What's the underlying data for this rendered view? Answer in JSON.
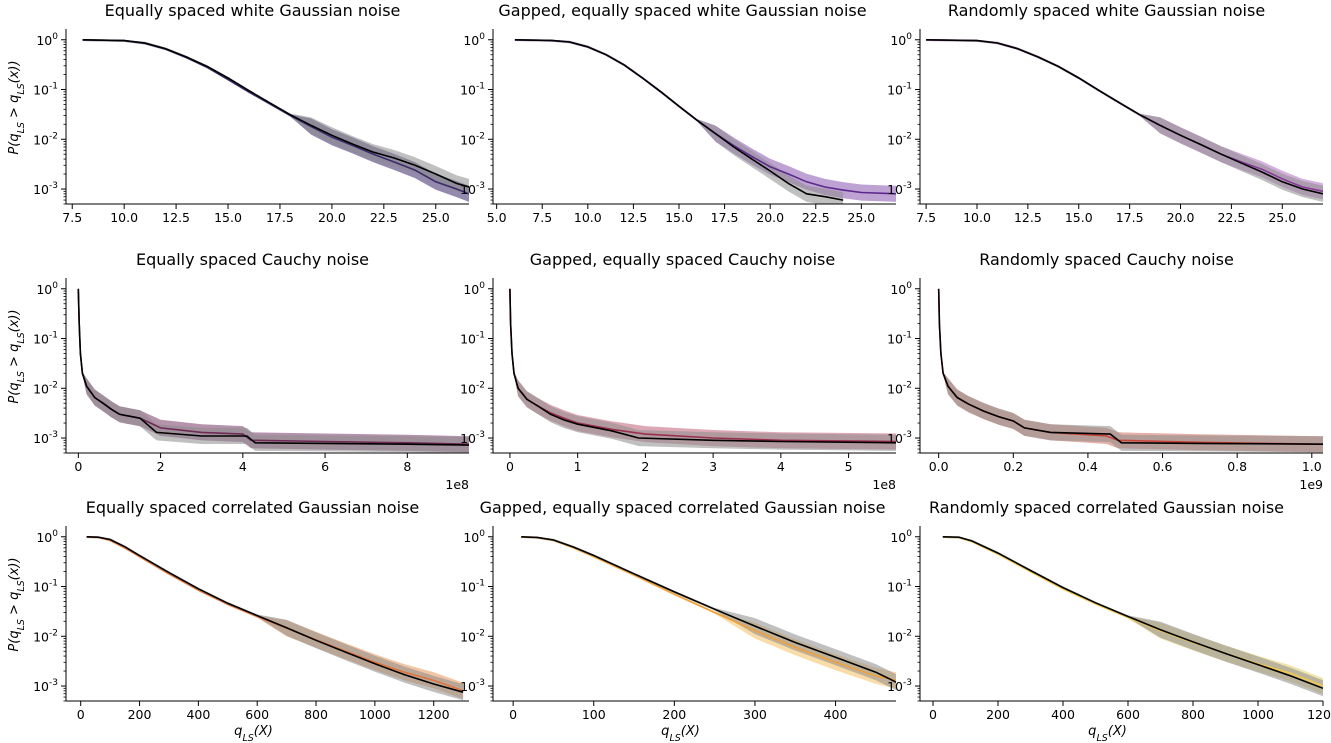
{
  "ylabel": "P(q_LS > q_LS(x))",
  "xlabel": "q_LS(X)",
  "yscale": "log",
  "ylim": [
    0.0005,
    1.5
  ],
  "colors": {
    "black": "#000000",
    "band_black": "#8c8c8c",
    "purple_dark": "#3b2a6b",
    "purple": "#5b2a8c",
    "purple_light": "#9b4fb0",
    "wine": "#6e2a55",
    "red_wine": "#9a2f4d",
    "red_orange": "#c8443a",
    "orange": "#e0743a",
    "orange_yellow": "#f0a03a",
    "yellow": "#f5c84a"
  },
  "chart_data": [
    {
      "type": "line",
      "title": "Equally spaced white Gaussian noise",
      "xlim": [
        7.2,
        26.6
      ],
      "xticks": [
        7.5,
        10,
        12.5,
        15,
        17.5,
        20,
        22.5,
        25
      ],
      "xticklabels": [
        "7.5",
        "10.0",
        "12.5",
        "15.0",
        "17.5",
        "20.0",
        "22.5",
        "25.0"
      ],
      "series": [
        {
          "color": "#3b2a6b",
          "band": "#3b2a6b",
          "x": [
            8,
            10,
            11,
            12,
            13,
            14,
            15,
            16,
            17,
            18,
            19,
            20,
            21,
            22,
            23,
            24,
            25,
            26,
            26.6
          ],
          "y": [
            1.0,
            0.96,
            0.85,
            0.65,
            0.44,
            0.28,
            0.16,
            0.09,
            0.052,
            0.03,
            0.018,
            0.011,
            0.0075,
            0.005,
            0.0035,
            0.0024,
            0.0014,
            0.001,
            0.0008
          ]
        },
        {
          "color": "#000000",
          "band": "#8c8c8c",
          "x": [
            8,
            10,
            11,
            12,
            13,
            14,
            15,
            16,
            17,
            18,
            19,
            20,
            21,
            22,
            23,
            24,
            25,
            26,
            26.6
          ],
          "y": [
            1.0,
            0.96,
            0.86,
            0.66,
            0.45,
            0.29,
            0.17,
            0.095,
            0.054,
            0.031,
            0.019,
            0.012,
            0.008,
            0.0055,
            0.0042,
            0.003,
            0.002,
            0.0013,
            0.0011
          ]
        }
      ]
    },
    {
      "type": "line",
      "title": "Gapped, equally spaced white Gaussian noise",
      "xlim": [
        4.8,
        26.9
      ],
      "xticks": [
        5,
        7.5,
        10,
        12.5,
        15,
        17.5,
        20,
        22.5,
        25
      ],
      "xticklabels": [
        "5.0",
        "7.5",
        "10.0",
        "12.5",
        "15.0",
        "17.5",
        "20.0",
        "22.5",
        "25.0"
      ],
      "series": [
        {
          "color": "#5b2a8c",
          "band": "#8a55b0",
          "x": [
            6,
            8,
            9,
            10,
            11,
            12,
            13,
            14,
            15,
            16,
            17,
            18,
            19,
            20,
            21,
            22,
            23,
            24,
            25,
            26.9
          ],
          "y": [
            1.0,
            0.97,
            0.9,
            0.72,
            0.5,
            0.31,
            0.17,
            0.09,
            0.046,
            0.024,
            0.013,
            0.0075,
            0.0045,
            0.0028,
            0.002,
            0.0014,
            0.0011,
            0.00095,
            0.00085,
            0.0008
          ]
        },
        {
          "color": "#000000",
          "band": "#8c8c8c",
          "x": [
            6,
            8,
            9,
            10,
            11,
            12,
            13,
            14,
            15,
            16,
            17,
            18,
            19,
            20,
            21,
            22,
            23,
            24
          ],
          "y": [
            1.0,
            0.97,
            0.9,
            0.72,
            0.5,
            0.31,
            0.17,
            0.09,
            0.046,
            0.024,
            0.013,
            0.007,
            0.004,
            0.0023,
            0.0013,
            0.0008,
            0.0007,
            0.0006
          ]
        }
      ]
    },
    {
      "type": "line",
      "title": "Randomly spaced white Gaussian noise",
      "xlim": [
        7.2,
        27.0
      ],
      "xticks": [
        7.5,
        10,
        12.5,
        15,
        17.5,
        20,
        22.5,
        25
      ],
      "xticklabels": [
        "7.5",
        "10.0",
        "12.5",
        "15.0",
        "17.5",
        "20.0",
        "22.5",
        "25.0"
      ],
      "series": [
        {
          "color": "#8a3a9a",
          "band": "#b070c0",
          "x": [
            7.5,
            10,
            11,
            12,
            13,
            14,
            15,
            16,
            17,
            18,
            19,
            20,
            21,
            22,
            23,
            24,
            25,
            26,
            27
          ],
          "y": [
            1.0,
            0.96,
            0.86,
            0.66,
            0.45,
            0.29,
            0.17,
            0.095,
            0.054,
            0.031,
            0.019,
            0.012,
            0.0078,
            0.005,
            0.0035,
            0.0025,
            0.0016,
            0.0011,
            0.0009
          ]
        },
        {
          "color": "#000000",
          "band": "#8c8c8c",
          "x": [
            7.5,
            10,
            11,
            12,
            13,
            14,
            15,
            16,
            17,
            18,
            19,
            20,
            21,
            22,
            23,
            24,
            25,
            26,
            27
          ],
          "y": [
            1.0,
            0.96,
            0.86,
            0.66,
            0.45,
            0.29,
            0.17,
            0.095,
            0.054,
            0.031,
            0.019,
            0.012,
            0.0078,
            0.005,
            0.0033,
            0.0022,
            0.0014,
            0.001,
            0.0008
          ]
        }
      ]
    },
    {
      "type": "line",
      "title": "Equally spaced Cauchy noise",
      "xlim": [
        -30000000,
        950000000
      ],
      "xticks": [
        0,
        200000000,
        400000000,
        600000000,
        800000000
      ],
      "xticklabels": [
        "0",
        "2",
        "4",
        "6",
        "8"
      ],
      "offset_text": "1e8",
      "series": [
        {
          "color": "#6e2a55",
          "band": "#7a3a6a",
          "x": [
            0,
            2000000,
            5000000,
            10000000,
            20000000,
            40000000,
            60000000,
            80000000,
            100000000,
            150000000,
            200000000,
            300000000,
            400000000,
            420000000,
            600000000,
            800000000,
            950000000
          ],
          "y": [
            1.0,
            0.2,
            0.05,
            0.02,
            0.011,
            0.0065,
            0.005,
            0.0038,
            0.003,
            0.0025,
            0.0016,
            0.0013,
            0.0012,
            0.0009,
            0.00085,
            0.0008,
            0.00075
          ]
        },
        {
          "color": "#000000",
          "band": "#8c8c8c",
          "x": [
            0,
            2000000,
            5000000,
            10000000,
            20000000,
            40000000,
            60000000,
            80000000,
            100000000,
            150000000,
            190000000,
            300000000,
            410000000,
            430000000,
            600000000,
            800000000,
            950000000
          ],
          "y": [
            1.0,
            0.2,
            0.05,
            0.02,
            0.011,
            0.0065,
            0.005,
            0.0038,
            0.003,
            0.0025,
            0.0013,
            0.0011,
            0.0011,
            0.0008,
            0.00078,
            0.00075,
            0.00072
          ]
        }
      ]
    },
    {
      "type": "line",
      "title": "Gapped, equally spaced Cauchy noise",
      "xlim": [
        -25000000,
        570000000
      ],
      "xticks": [
        0,
        100000000,
        200000000,
        300000000,
        400000000,
        500000000
      ],
      "xticklabels": [
        "0",
        "1",
        "2",
        "3",
        "4",
        "5"
      ],
      "offset_text": "1e8",
      "series": [
        {
          "color": "#9a2f4d",
          "band": "#c0607a",
          "x": [
            0,
            1000000,
            3000000,
            6000000,
            12000000,
            25000000,
            40000000,
            60000000,
            80000000,
            100000000,
            150000000,
            200000000,
            300000000,
            400000000,
            570000000
          ],
          "y": [
            1.0,
            0.2,
            0.05,
            0.02,
            0.01,
            0.006,
            0.0045,
            0.0032,
            0.0025,
            0.002,
            0.0015,
            0.0012,
            0.001,
            0.0009,
            0.00085
          ]
        },
        {
          "color": "#000000",
          "band": "#8c8c8c",
          "x": [
            0,
            1000000,
            3000000,
            6000000,
            12000000,
            25000000,
            40000000,
            60000000,
            80000000,
            100000000,
            150000000,
            190000000,
            300000000,
            400000000,
            570000000
          ],
          "y": [
            1.0,
            0.2,
            0.05,
            0.02,
            0.01,
            0.006,
            0.0045,
            0.003,
            0.0023,
            0.0019,
            0.0014,
            0.001,
            0.0009,
            0.00085,
            0.0008
          ]
        }
      ]
    },
    {
      "type": "line",
      "title": "Randomly spaced Cauchy noise",
      "xlim": [
        -50000000,
        1030000000
      ],
      "xticks": [
        0,
        200000000,
        400000000,
        600000000,
        800000000,
        1000000000
      ],
      "xticklabels": [
        "0.0",
        "0.2",
        "0.4",
        "0.6",
        "0.8",
        "1.0"
      ],
      "offset_text": "1e9",
      "series": [
        {
          "color": "#c8443a",
          "band": "#d07060",
          "x": [
            0,
            2000000,
            6000000,
            12000000,
            25000000,
            50000000,
            80000000,
            120000000,
            160000000,
            200000000,
            230000000,
            300000000,
            450000000,
            480000000,
            700000000,
            1030000000
          ],
          "y": [
            1.0,
            0.2,
            0.05,
            0.02,
            0.011,
            0.0065,
            0.0048,
            0.0035,
            0.0027,
            0.0022,
            0.0016,
            0.0013,
            0.0011,
            0.0009,
            0.00082,
            0.00075
          ]
        },
        {
          "color": "#000000",
          "band": "#8c8c8c",
          "x": [
            0,
            2000000,
            6000000,
            12000000,
            25000000,
            50000000,
            80000000,
            120000000,
            160000000,
            200000000,
            230000000,
            300000000,
            460000000,
            490000000,
            700000000,
            1030000000
          ],
          "y": [
            1.0,
            0.2,
            0.05,
            0.02,
            0.011,
            0.0065,
            0.0048,
            0.0035,
            0.0027,
            0.0022,
            0.0016,
            0.0013,
            0.0012,
            0.0008,
            0.00078,
            0.00075
          ]
        }
      ]
    },
    {
      "type": "line",
      "title": "Equally spaced correlated Gaussian noise",
      "xlim": [
        -50,
        1320
      ],
      "xticks": [
        0,
        200,
        400,
        600,
        800,
        1000,
        1200
      ],
      "xticklabels": [
        "0",
        "200",
        "400",
        "600",
        "800",
        "1000",
        "1200"
      ],
      "series": [
        {
          "color": "#e0743a",
          "band": "#e8955a",
          "x": [
            20,
            60,
            100,
            150,
            200,
            300,
            400,
            500,
            600,
            700,
            800,
            900,
            1000,
            1100,
            1200,
            1300
          ],
          "y": [
            1.0,
            0.98,
            0.85,
            0.6,
            0.4,
            0.18,
            0.085,
            0.044,
            0.025,
            0.0145,
            0.0085,
            0.005,
            0.003,
            0.0019,
            0.0013,
            0.0008
          ]
        },
        {
          "color": "#000000",
          "band": "#8c8c8c",
          "x": [
            20,
            60,
            100,
            150,
            200,
            300,
            400,
            500,
            600,
            700,
            800,
            900,
            1000,
            1100,
            1200,
            1300
          ],
          "y": [
            1.0,
            0.98,
            0.88,
            0.63,
            0.42,
            0.19,
            0.09,
            0.046,
            0.026,
            0.0148,
            0.0083,
            0.0048,
            0.0028,
            0.0017,
            0.0011,
            0.00075
          ]
        }
      ]
    },
    {
      "type": "line",
      "title": "Gapped, equally spaced correlated Gaussian noise",
      "xlim": [
        -25,
        475
      ],
      "xticks": [
        0,
        100,
        200,
        300,
        400
      ],
      "xticklabels": [
        "0",
        "100",
        "200",
        "300",
        "400"
      ],
      "series": [
        {
          "color": "#f0a03a",
          "band": "#f5c060",
          "x": [
            10,
            30,
            50,
            75,
            100,
            150,
            200,
            250,
            300,
            350,
            400,
            450,
            475
          ],
          "y": [
            1.0,
            0.97,
            0.85,
            0.6,
            0.4,
            0.17,
            0.07,
            0.03,
            0.013,
            0.006,
            0.003,
            0.0016,
            0.0013
          ]
        },
        {
          "color": "#000000",
          "band": "#8c8c8c",
          "x": [
            10,
            30,
            50,
            75,
            100,
            150,
            200,
            250,
            300,
            350,
            400,
            450,
            475
          ],
          "y": [
            1.0,
            0.97,
            0.86,
            0.62,
            0.42,
            0.18,
            0.078,
            0.035,
            0.016,
            0.0075,
            0.0038,
            0.0019,
            0.0012
          ]
        }
      ]
    },
    {
      "type": "line",
      "title": "Randomly spaced correlated Gaussian noise",
      "xlim": [
        -40,
        1200
      ],
      "xticks": [
        0,
        200,
        400,
        600,
        800,
        1000,
        1200
      ],
      "xticklabels": [
        "0",
        "200",
        "400",
        "600",
        "800",
        "1000",
        "1200"
      ],
      "series": [
        {
          "color": "#f5c84a",
          "band": "#e8d070",
          "x": [
            30,
            80,
            120,
            200,
            300,
            400,
            500,
            600,
            700,
            800,
            900,
            1000,
            1100,
            1200
          ],
          "y": [
            1.0,
            0.97,
            0.8,
            0.45,
            0.2,
            0.09,
            0.045,
            0.024,
            0.013,
            0.0075,
            0.0045,
            0.0028,
            0.0018,
            0.001
          ]
        },
        {
          "color": "#000000",
          "band": "#8c8c8c",
          "x": [
            30,
            80,
            120,
            200,
            300,
            400,
            500,
            600,
            700,
            800,
            900,
            1000,
            1100,
            1200
          ],
          "y": [
            1.0,
            0.98,
            0.82,
            0.47,
            0.21,
            0.095,
            0.047,
            0.025,
            0.0135,
            0.0077,
            0.0045,
            0.0027,
            0.0016,
            0.0009
          ]
        }
      ]
    }
  ]
}
